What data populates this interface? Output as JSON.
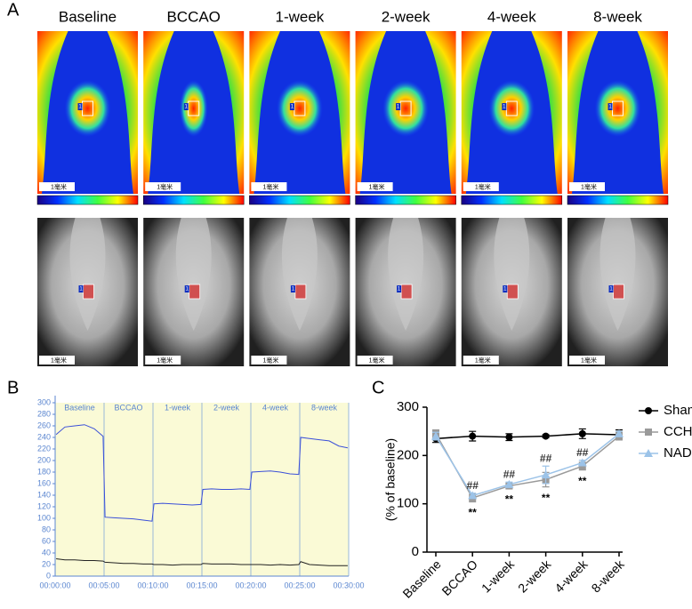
{
  "panels": {
    "a": "A",
    "b": "B",
    "c": "C"
  },
  "panel_a": {
    "columns": [
      "Baseline",
      "BCCAO",
      "1-week",
      "2-week",
      "4-week",
      "8-week"
    ],
    "scale_label": "1毫米",
    "roi_label": "1"
  },
  "chart_data": [
    {
      "type": "line",
      "segments": [
        "Baseline",
        "BCCAO",
        "1-week",
        "2-week",
        "4-week",
        "8-week"
      ],
      "x": [
        0.1,
        1,
        2,
        3,
        4,
        4.9,
        5.1,
        6,
        7,
        8,
        9,
        9.9,
        10.1,
        11,
        12,
        13,
        14,
        14.9,
        15.1,
        16,
        17,
        18,
        19,
        19.9,
        20.1,
        21,
        22,
        23,
        24,
        24.9,
        25.1,
        26,
        27,
        28,
        29,
        29.9
      ],
      "series": [
        {
          "color": "#3a4fd8",
          "values": [
            245,
            258,
            260,
            262,
            255,
            242,
            102,
            101,
            100,
            99,
            97,
            95,
            125,
            126,
            125,
            124,
            123,
            124,
            150,
            151,
            150,
            150,
            151,
            150,
            180,
            181,
            182,
            180,
            177,
            176,
            240,
            238,
            236,
            234,
            225,
            222
          ]
        },
        {
          "color": "#222222",
          "values": [
            30,
            28,
            28,
            27,
            27,
            26,
            24,
            23,
            22,
            22,
            21,
            21,
            20,
            20,
            19,
            20,
            20,
            20,
            22,
            21,
            21,
            21,
            20,
            20,
            20,
            20,
            19,
            20,
            19,
            20,
            25,
            20,
            19,
            18,
            18,
            18
          ]
        }
      ],
      "xlim": [
        0,
        30
      ],
      "xticks": [
        {
          "value": 0,
          "label": "00:00:00"
        },
        {
          "value": 5,
          "label": "00:05:00"
        },
        {
          "value": 10,
          "label": "00:10:00"
        },
        {
          "value": 15,
          "label": "00:15:00"
        },
        {
          "value": 20,
          "label": "00:20:00"
        },
        {
          "value": 25,
          "label": "00:25:00"
        },
        {
          "value": 30,
          "label": "00:30:00"
        }
      ],
      "ylim": [
        0,
        300
      ],
      "yticks": [
        0,
        20,
        40,
        60,
        80,
        100,
        120,
        140,
        160,
        180,
        200,
        220,
        240,
        260,
        280,
        300
      ],
      "background": "#fafad6"
    },
    {
      "type": "line",
      "y_label": "(% of baseline)",
      "categories": [
        "Baseline",
        "BCCAO",
        "1-week",
        "2-week",
        "4-week",
        "8-week"
      ],
      "series": [
        {
          "name": "Sham",
          "color": "#000000",
          "marker": "circle",
          "values": [
            235,
            240,
            238,
            240,
            245,
            243
          ],
          "errors": [
            8,
            10,
            7,
            3,
            10,
            10
          ]
        },
        {
          "name": "CCH",
          "color": "#9a9a9a",
          "marker": "square",
          "values": [
            245,
            112,
            137,
            150,
            178,
            240
          ],
          "errors": [
            8,
            8,
            5,
            15,
            8,
            8
          ],
          "marks": [
            null,
            "**",
            "**",
            "**",
            "**",
            null
          ]
        },
        {
          "name": "NAD⁺",
          "color": "#9cc3e8",
          "marker": "triangle",
          "values": [
            240,
            117,
            140,
            160,
            185,
            245
          ],
          "errors": [
            8,
            5,
            5,
            18,
            5,
            5
          ],
          "marks": [
            null,
            "##",
            "##",
            "##",
            "##",
            null
          ]
        }
      ],
      "ylim": [
        0,
        300
      ],
      "yticks": [
        0,
        100,
        200,
        300
      ],
      "legend": "right"
    }
  ]
}
